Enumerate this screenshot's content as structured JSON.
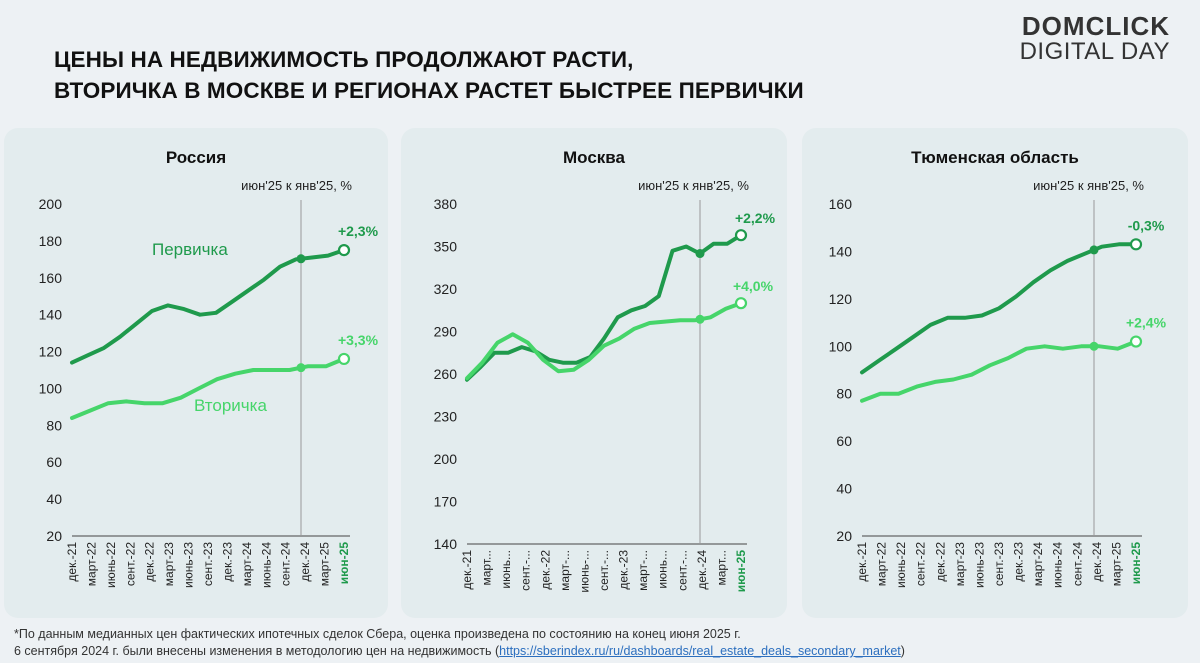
{
  "header": {
    "title_line1": "ЦЕНЫ НА НЕДВИЖИМОСТЬ ПРОДОЛЖАЮТ РАСТИ,",
    "title_line2": "ВТОРИЧКА В МОСКВЕ И РЕГИОНАХ РАСТЕТ БЫСТРЕЕ ПЕРВИЧКИ",
    "logo_line1": "DOMCLICK",
    "logo_line2": "DIGITAL DAY"
  },
  "colors": {
    "primary": "#1f9a4c",
    "secondary": "#46d56a",
    "card_bg": "#e3ecee",
    "page_bg": "#edf1f4",
    "axis": "#444444"
  },
  "chart_data": [
    {
      "type": "line",
      "title": "Россия",
      "subtitle": "июн'25 к янв'25, %",
      "ylim": [
        20,
        200
      ],
      "yticks": [
        20,
        40,
        60,
        80,
        100,
        120,
        140,
        160,
        180,
        200
      ],
      "xticks": [
        "дек.-21",
        "март-22",
        "июнь-22",
        "сент.-22",
        "дек.-22",
        "март-23",
        "июнь-23",
        "сент.-23",
        "дек.-23",
        "март-24",
        "июнь-24",
        "сент.-24",
        "дек.-24",
        "март-25",
        "июн-25"
      ],
      "highlight_tick": "июн-25",
      "series": [
        {
          "name": "Первичка",
          "label": "Первичка",
          "change": "+2,3%",
          "values": [
            114,
            118,
            122,
            128,
            135,
            142,
            145,
            143,
            140,
            141,
            147,
            153,
            159,
            166,
            170,
            171,
            172,
            175
          ]
        },
        {
          "name": "Вторичка",
          "label": "Вторичка",
          "change": "+3,3%",
          "values": [
            84,
            88,
            92,
            93,
            92,
            92,
            95,
            100,
            105,
            108,
            110,
            110,
            110,
            112,
            112,
            116
          ]
        }
      ]
    },
    {
      "type": "line",
      "title": "Москва",
      "subtitle": "июн'25 к янв'25, %",
      "ylim": [
        140,
        380
      ],
      "yticks": [
        140,
        170,
        200,
        230,
        260,
        290,
        320,
        350,
        380
      ],
      "xticks": [
        "дек.-21",
        "март...",
        "июнь...",
        "сент.-...",
        "дек.-22",
        "март-...",
        "июнь-...",
        "сент.-...",
        "дек.-23",
        "март-...",
        "июнь...",
        "сент.-...",
        "дек.-24",
        "март...",
        "июн-25"
      ],
      "highlight_tick": "июн-25",
      "series": [
        {
          "name": "Первичка",
          "change": "+2,2%",
          "values": [
            256,
            265,
            275,
            275,
            279,
            276,
            270,
            268,
            268,
            272,
            285,
            300,
            305,
            308,
            315,
            347,
            350,
            345,
            352,
            352,
            358
          ]
        },
        {
          "name": "Вторичка",
          "change": "+4,0%",
          "values": [
            257,
            268,
            282,
            288,
            282,
            270,
            262,
            263,
            270,
            280,
            285,
            292,
            296,
            297,
            298,
            298,
            300,
            306,
            310
          ]
        }
      ]
    },
    {
      "type": "line",
      "title": "Тюменская область",
      "subtitle": "июн'25 к янв'25, %",
      "ylim": [
        20,
        160
      ],
      "yticks": [
        20,
        40,
        60,
        80,
        100,
        120,
        140,
        160
      ],
      "xticks": [
        "дек.-21",
        "март-22",
        "июнь-22",
        "сент.-22",
        "дек.-22",
        "март-23",
        "июнь-23",
        "сент.-23",
        "дек.-23",
        "март-24",
        "июнь-24",
        "сент.-24",
        "дек.-24",
        "март-25",
        "июн-25"
      ],
      "highlight_tick": "июн-25",
      "series": [
        {
          "name": "Первичка",
          "change": "-0,3%",
          "values": [
            89,
            94,
            99,
            104,
            109,
            112,
            112,
            113,
            116,
            121,
            127,
            132,
            136,
            139,
            142,
            143,
            143
          ]
        },
        {
          "name": "Вторичка",
          "change": "+2,4%",
          "values": [
            77,
            80,
            80,
            83,
            85,
            86,
            88,
            92,
            95,
            99,
            100,
            99,
            100,
            100,
            99,
            102
          ]
        }
      ]
    }
  ],
  "footnote": {
    "line1": "*По данным медианных цен фактических ипотечных сделок Сбера, оценка произведена по состоянию на конец июня 2025 г.",
    "line2_prefix": "6 сентября 2024 г. были внесены изменения в методологию цен на недвижимость (",
    "link": "https://sberindex.ru/ru/dashboards/real_estate_deals_secondary_market",
    "line2_suffix": ")"
  }
}
